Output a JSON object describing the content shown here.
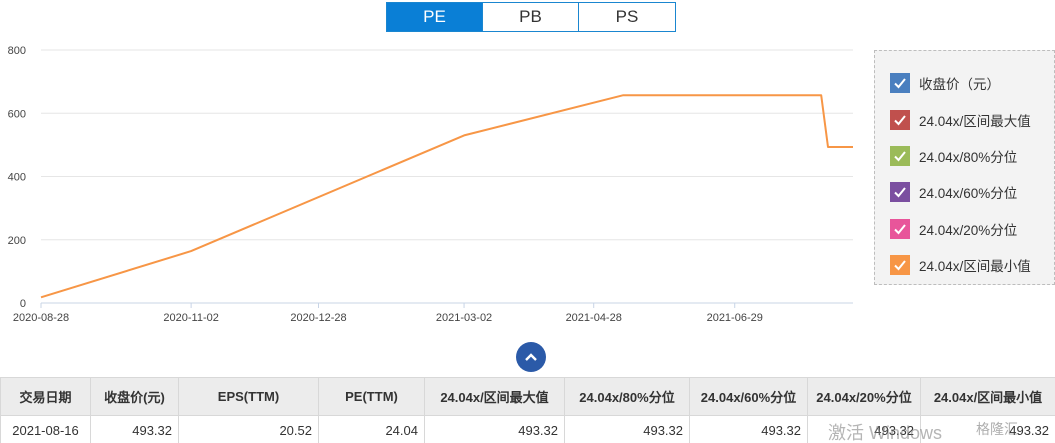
{
  "tabs": [
    {
      "label": "PE",
      "active": true
    },
    {
      "label": "PB",
      "active": false
    },
    {
      "label": "PS",
      "active": false
    }
  ],
  "legend": [
    {
      "label": "收盘价（元）",
      "color": "#4a7fbf"
    },
    {
      "label": "24.04x/区间最大值",
      "color": "#c0504d"
    },
    {
      "label": "24.04x/80%分位",
      "color": "#9bbb59"
    },
    {
      "label": "24.04x/60%分位",
      "color": "#7b4fa0"
    },
    {
      "label": "24.04x/20%分位",
      "color": "#e8559a"
    },
    {
      "label": "24.04x/区间最小值",
      "color": "#f79646"
    }
  ],
  "chart_data": {
    "type": "line",
    "yticks": [
      "0",
      "200",
      "400",
      "600",
      "800"
    ],
    "ylim": [
      0,
      800
    ],
    "xticks": [
      "2020-08-28",
      "2020-11-02",
      "2020-12-28",
      "2021-03-02",
      "2021-04-28",
      "2021-06-29"
    ],
    "xlim": [
      "2020-08-28",
      "2021-08-20"
    ],
    "grid": true,
    "legend_position": "right",
    "series": [
      {
        "name": "24.04x/区间最小值",
        "color": "#f79646",
        "points": [
          [
            "2020-08-28",
            18
          ],
          [
            "2020-11-02",
            164
          ],
          [
            "2021-03-02",
            530
          ],
          [
            "2021-05-11",
            657
          ],
          [
            "2021-08-06",
            657
          ],
          [
            "2021-08-09",
            493.32
          ],
          [
            "2021-08-20",
            493.32
          ]
        ]
      }
    ]
  },
  "table": {
    "headers": [
      "交易日期",
      "收盘价(元)",
      "EPS(TTM)",
      "PE(TTM)",
      "24.04x/区间最大值",
      "24.04x/80%分位",
      "24.04x/60%分位",
      "24.04x/20%分位",
      "24.04x/区间最小值"
    ],
    "rows": [
      [
        "2021-08-16",
        "493.32",
        "20.52",
        "24.04",
        "493.32",
        "493.32",
        "493.32",
        "493.32",
        "493.32"
      ]
    ]
  },
  "watermark": "激活 Windows",
  "brand": "格隆汇"
}
